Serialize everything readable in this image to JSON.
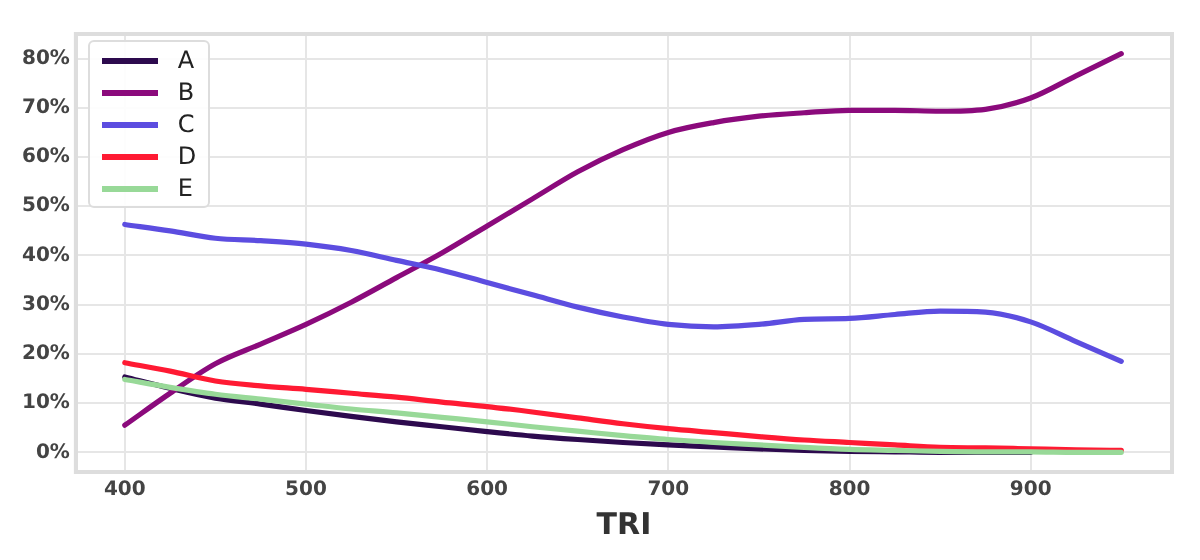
{
  "chart_data": {
    "type": "line",
    "xlabel": "TRI",
    "x": [
      400,
      425,
      450,
      475,
      500,
      525,
      550,
      575,
      600,
      625,
      650,
      675,
      700,
      725,
      750,
      775,
      800,
      825,
      850,
      875,
      900,
      925,
      950
    ],
    "series": [
      {
        "name": "A",
        "color": "#2d0a4e",
        "values": [
          15.3,
          13,
          11,
          9.8,
          8.5,
          7.3,
          6.2,
          5.2,
          4.2,
          3.3,
          2.6,
          2,
          1.5,
          1.1,
          0.7,
          0.4,
          0.2,
          0.1,
          0,
          0,
          0,
          null,
          null
        ]
      },
      {
        "name": "B",
        "color": "#8b0a7c",
        "values": [
          5.5,
          12,
          18,
          22,
          26,
          30.5,
          35.5,
          40.5,
          46,
          51.5,
          57,
          61.5,
          65,
          67,
          68.3,
          69,
          69.5,
          69.5,
          69.3,
          69.7,
          72,
          76.5,
          81
        ]
      },
      {
        "name": "C",
        "color": "#5c4de0",
        "values": [
          46.3,
          45,
          43.5,
          43,
          42.3,
          41,
          39,
          37,
          34.5,
          32,
          29.5,
          27.5,
          26,
          25.5,
          26,
          27,
          27.2,
          28,
          28.7,
          28.5,
          26.5,
          22.5,
          18.5
        ]
      },
      {
        "name": "D",
        "color": "#ff1a33",
        "values": [
          18.2,
          16.5,
          14.5,
          13.5,
          12.8,
          12,
          11.2,
          10.2,
          9.3,
          8.2,
          7,
          5.8,
          4.8,
          4,
          3.2,
          2.5,
          2,
          1.5,
          1,
          0.9,
          0.7,
          0.5,
          0.4
        ]
      },
      {
        "name": "E",
        "color": "#98d998",
        "values": [
          14.8,
          13.2,
          11.8,
          10.8,
          9.8,
          8.8,
          8,
          7.1,
          6.2,
          5.2,
          4.3,
          3.4,
          2.6,
          2,
          1.5,
          1,
          0.6,
          0.4,
          0.2,
          0.1,
          0.1,
          0,
          0
        ]
      }
    ],
    "xlim": [
      373,
      978
    ],
    "xticks": [
      400,
      500,
      600,
      700,
      800,
      900
    ],
    "ylim": [
      -4,
      85
    ],
    "yticks": [
      {
        "value": 0,
        "label": "0%"
      },
      {
        "value": 10,
        "label": "10%"
      },
      {
        "value": 20,
        "label": "20%"
      },
      {
        "value": 30,
        "label": "30%"
      },
      {
        "value": 40,
        "label": "40%"
      },
      {
        "value": 50,
        "label": "50%"
      },
      {
        "value": 60,
        "label": "60%"
      },
      {
        "value": 70,
        "label": "70%"
      },
      {
        "value": 80,
        "label": "80%"
      }
    ],
    "grid": true,
    "legend": "top left",
    "marker": "none",
    "line_style": "solid"
  }
}
